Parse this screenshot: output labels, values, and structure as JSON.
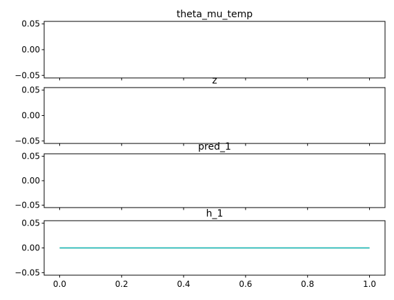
{
  "chart_data": {
    "type": "line",
    "sharex": true,
    "xlim": [
      -0.05,
      1.05
    ],
    "x_ticks": [
      0.0,
      0.2,
      0.4,
      0.6,
      0.8,
      1.0
    ],
    "x_tick_labels": [
      "0.0",
      "0.2",
      "0.4",
      "0.6",
      "0.8",
      "1.0"
    ],
    "panels": [
      {
        "title": "theta_mu_temp",
        "ylim": [
          -0.055,
          0.055
        ],
        "y_ticks": [
          -0.05,
          0.0,
          0.05
        ],
        "y_tick_labels": [
          "−0.05",
          "0.00",
          "0.05"
        ],
        "series": []
      },
      {
        "title": "z",
        "ylim": [
          -0.055,
          0.055
        ],
        "y_ticks": [
          -0.05,
          0.0,
          0.05
        ],
        "y_tick_labels": [
          "−0.05",
          "0.00",
          "0.05"
        ],
        "series": []
      },
      {
        "title": "pred_1",
        "ylim": [
          -0.055,
          0.055
        ],
        "y_ticks": [
          -0.05,
          0.0,
          0.05
        ],
        "y_tick_labels": [
          "−0.05",
          "0.00",
          "0.05"
        ],
        "series": []
      },
      {
        "title": "h_1",
        "ylim": [
          -0.055,
          0.055
        ],
        "y_ticks": [
          -0.05,
          0.0,
          0.05
        ],
        "y_tick_labels": [
          "−0.05",
          "0.00",
          "0.05"
        ],
        "series": [
          {
            "x": [
              0,
              1
            ],
            "y": [
              0,
              0
            ],
            "color": "#7f7f7f"
          },
          {
            "x": [
              0,
              1
            ],
            "y": [
              0,
              0
            ],
            "color": "#bcbd22"
          },
          {
            "x": [
              0,
              1
            ],
            "y": [
              0,
              0
            ],
            "color": "#17becf"
          }
        ]
      }
    ]
  }
}
